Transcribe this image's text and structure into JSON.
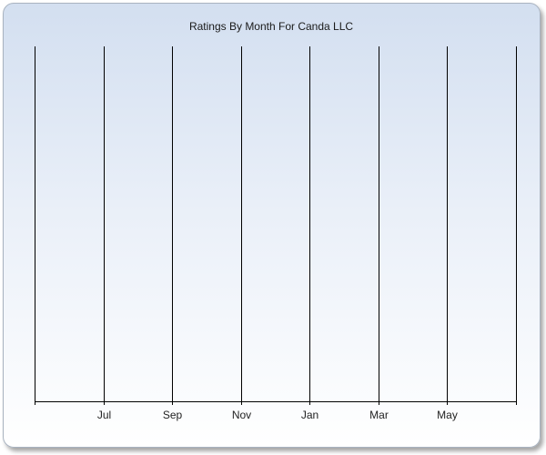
{
  "chart_data": {
    "type": "bar",
    "title": "Ratings By Month For Canda LLC",
    "xlabel": "",
    "ylabel": "",
    "categories": [
      "Jul",
      "Sep",
      "Nov",
      "Jan",
      "Mar",
      "May"
    ],
    "series": [],
    "grid": true,
    "legend": "none"
  },
  "colors": {
    "gridline": "#000000",
    "background_top": "#d3dff0",
    "background_bottom": "#ffffff",
    "frame_border": "#a9b3c0"
  }
}
